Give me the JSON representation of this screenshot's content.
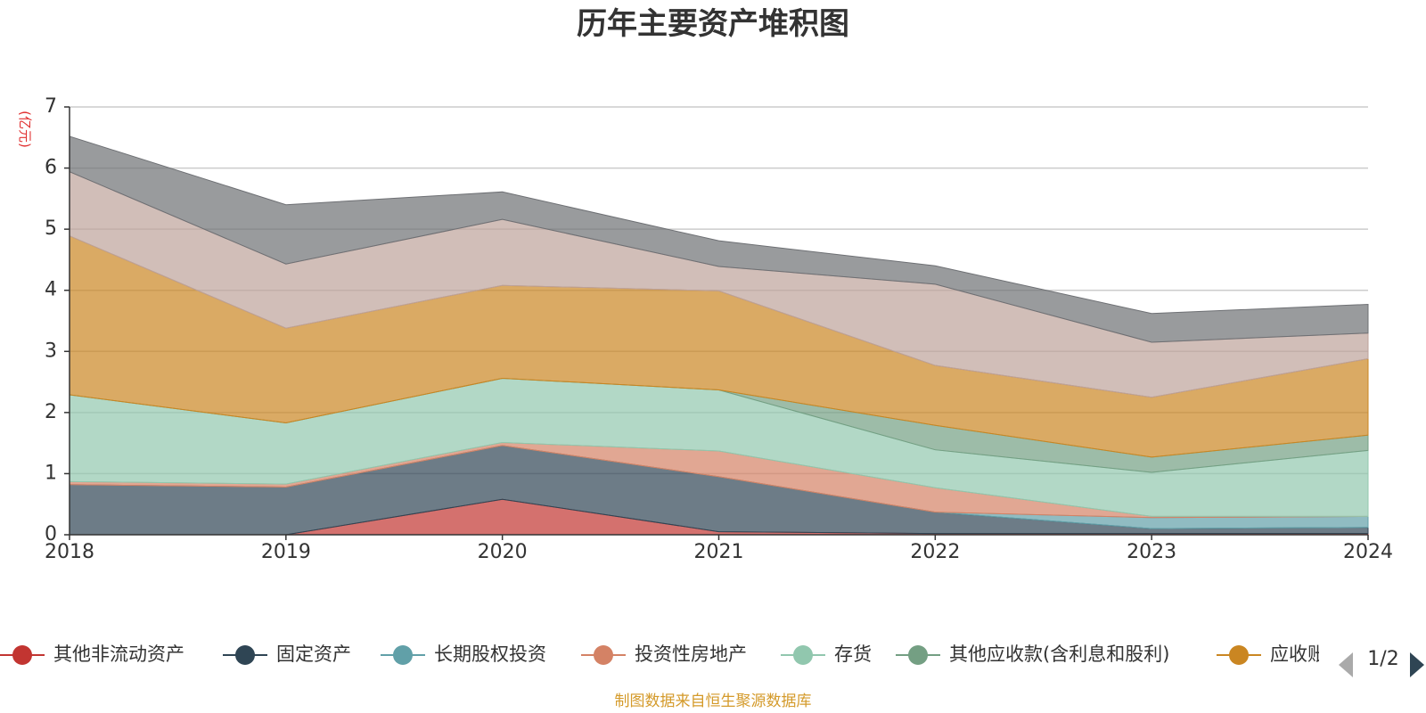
{
  "title": "历年主要资产堆积图",
  "unit_label": "(亿元)",
  "source": "制图数据来自恒生聚源数据库",
  "legend": {
    "items": [
      {
        "label": "其他非流动资产",
        "color": "#c23531"
      },
      {
        "label": "固定资产",
        "color": "#2f4554"
      },
      {
        "label": "长期股权投资",
        "color": "#61a0a8"
      },
      {
        "label": "投资性房地产",
        "color": "#d48265"
      },
      {
        "label": "存货",
        "color": "#91c7ae"
      },
      {
        "label": "其他应收款(含利息和股利)",
        "color": "#749f83"
      },
      {
        "label": "应收账款",
        "color": "#ca8622"
      }
    ],
    "page": "1/2"
  },
  "chart_data": {
    "type": "area",
    "stacked": true,
    "title": "历年主要资产堆积图",
    "ylabel": "(亿元)",
    "x": [
      "2018",
      "2019",
      "2020",
      "2021",
      "2022",
      "2023",
      "2024"
    ],
    "ylim": [
      0,
      7
    ],
    "yticks": [
      0,
      1,
      2,
      3,
      4,
      5,
      6,
      7
    ],
    "grid": true,
    "legend_position": "bottom",
    "series": [
      {
        "name": "其他非流动资产",
        "color": "#c23531",
        "values": [
          0,
          0,
          0.58,
          0.05,
          0.02,
          0.02,
          0.02
        ]
      },
      {
        "name": "固定资产",
        "color": "#2f4554",
        "values": [
          0.82,
          0.78,
          0.88,
          0.9,
          0.35,
          0.08,
          0.1
        ]
      },
      {
        "name": "长期股权投资",
        "color": "#61a0a8",
        "values": [
          0,
          0,
          0,
          0,
          0,
          0.18,
          0.18
        ]
      },
      {
        "name": "投资性房地产",
        "color": "#d48265",
        "values": [
          0.05,
          0.05,
          0.05,
          0.42,
          0.4,
          0.02,
          0
        ]
      },
      {
        "name": "存货",
        "color": "#91c7ae",
        "values": [
          1.42,
          1.0,
          1.05,
          1.0,
          0.62,
          0.72,
          1.08
        ]
      },
      {
        "name": "其他应收款(含利息和股利)",
        "color": "#749f83",
        "values": [
          0,
          0,
          0,
          0,
          0.4,
          0.25,
          0.25
        ]
      },
      {
        "name": "应收账款",
        "color": "#ca8622",
        "values": [
          2.6,
          1.55,
          1.52,
          1.62,
          0.98,
          0.98,
          1.25
        ]
      },
      {
        "name": "",
        "color": "#bda29a",
        "values": [
          1.05,
          1.05,
          1.08,
          0.4,
          1.33,
          0.9,
          0.42
        ]
      },
      {
        "name": "",
        "color": "#6e7074",
        "values": [
          0.58,
          0.97,
          0.45,
          0.42,
          0.3,
          0.47,
          0.47
        ]
      }
    ]
  }
}
